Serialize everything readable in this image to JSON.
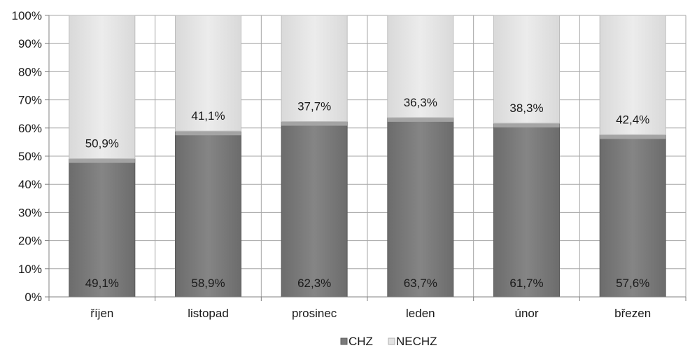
{
  "chart_data": {
    "type": "bar",
    "stacked": "percent",
    "categories": [
      "říjen",
      "listopad",
      "prosinec",
      "leden",
      "únor",
      "březen"
    ],
    "series": [
      {
        "name": "CHZ",
        "values": [
          49.1,
          58.9,
          62.3,
          63.7,
          61.7,
          57.6
        ],
        "labels": [
          "49,1%",
          "58,9%",
          "62,3%",
          "63,7%",
          "61,7%",
          "57,6%"
        ],
        "color": "#7a7a7a"
      },
      {
        "name": "NECHZ",
        "values": [
          50.9,
          41.1,
          37.7,
          36.3,
          38.3,
          42.4
        ],
        "labels": [
          "50,9%",
          "41,1%",
          "37,7%",
          "36,3%",
          "38,3%",
          "42,4%"
        ],
        "color": "#e3e3e3"
      }
    ],
    "ylim": [
      0,
      100
    ],
    "y_ticks": [
      "0%",
      "10%",
      "20%",
      "30%",
      "40%",
      "50%",
      "60%",
      "70%",
      "80%",
      "90%",
      "100%"
    ],
    "grid": "vertical and horizontal",
    "legend_position": "bottom"
  }
}
